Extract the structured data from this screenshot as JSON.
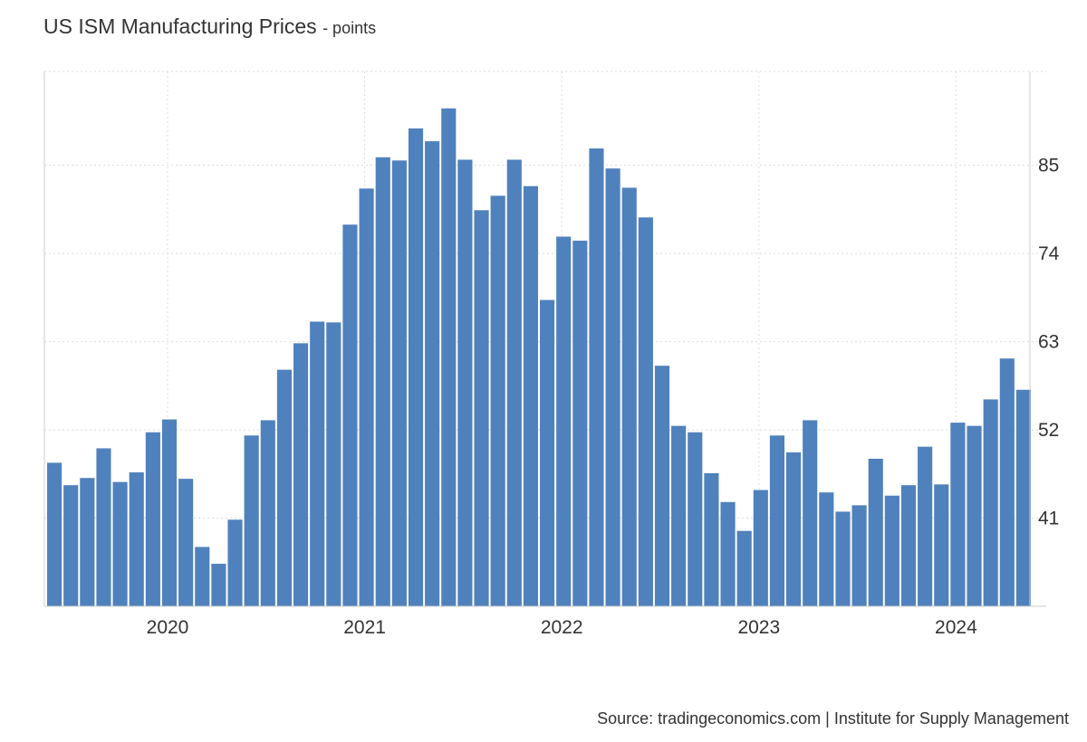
{
  "title": "US ISM Manufacturing Prices",
  "units": "- points",
  "source": "Source: tradingeconomics.com | Institute for Supply Management",
  "colors": {
    "bar": "#4f81bd",
    "grid": "#dddddd",
    "axis": "#cccccc",
    "text": "#333333"
  },
  "chart_data": {
    "type": "bar",
    "ylim": [
      30,
      96.7
    ],
    "yticks": [
      41,
      52,
      63,
      74,
      85
    ],
    "ytick_labels": [
      "41",
      "52",
      "63",
      "74",
      "85"
    ],
    "y_axis_position": "right",
    "grid": true,
    "x_tick_labels": [
      "2020",
      "2021",
      "2022",
      "2023",
      "2024"
    ],
    "x_tick_dates": [
      "2020-01",
      "2021-01",
      "2022-01",
      "2023-01",
      "2024-01"
    ],
    "categories": [
      "2019-06",
      "2019-07",
      "2019-08",
      "2019-09",
      "2019-10",
      "2019-11",
      "2019-12",
      "2020-01",
      "2020-02",
      "2020-03",
      "2020-04",
      "2020-05",
      "2020-06",
      "2020-07",
      "2020-08",
      "2020-09",
      "2020-10",
      "2020-11",
      "2020-12",
      "2021-01",
      "2021-02",
      "2021-03",
      "2021-04",
      "2021-05",
      "2021-06",
      "2021-07",
      "2021-08",
      "2021-09",
      "2021-10",
      "2021-11",
      "2021-12",
      "2022-01",
      "2022-02",
      "2022-03",
      "2022-04",
      "2022-05",
      "2022-06",
      "2022-07",
      "2022-08",
      "2022-09",
      "2022-10",
      "2022-11",
      "2022-12",
      "2023-01",
      "2023-02",
      "2023-03",
      "2023-04",
      "2023-05",
      "2023-06",
      "2023-07",
      "2023-08",
      "2023-09",
      "2023-10",
      "2023-11",
      "2023-12",
      "2024-01",
      "2024-02",
      "2024-03",
      "2024-04",
      "2024-05"
    ],
    "values": [
      47.9,
      45.1,
      46.0,
      49.7,
      45.5,
      46.7,
      51.7,
      53.3,
      45.9,
      37.4,
      35.3,
      40.8,
      51.3,
      53.2,
      59.5,
      62.8,
      65.5,
      65.4,
      77.6,
      82.1,
      86.0,
      85.6,
      89.6,
      88.0,
      92.1,
      85.7,
      79.4,
      81.2,
      85.7,
      82.4,
      68.2,
      76.1,
      75.6,
      87.1,
      84.6,
      82.2,
      78.5,
      60.0,
      52.5,
      51.7,
      46.6,
      43.0,
      39.4,
      44.5,
      51.3,
      49.2,
      53.2,
      44.2,
      41.8,
      42.6,
      48.4,
      43.8,
      45.1,
      49.9,
      45.2,
      52.9,
      52.5,
      55.8,
      60.9,
      57.0
    ]
  }
}
